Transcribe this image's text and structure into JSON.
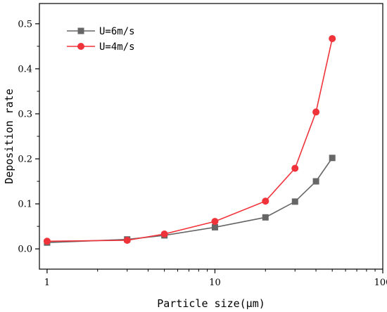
{
  "chart_data": {
    "type": "line",
    "title": "",
    "xlabel": "Particle size(μm)",
    "ylabel": "Deposition rate",
    "x_scale": "log",
    "xlim": [
      0.9,
      100
    ],
    "ylim": [
      -0.045,
      0.545
    ],
    "x_ticks": [
      1,
      10,
      100
    ],
    "x_tick_labels": [
      "1",
      "10",
      "100"
    ],
    "y_ticks": [
      0.0,
      0.1,
      0.2,
      0.3,
      0.4,
      0.5
    ],
    "y_tick_labels": [
      "0.0",
      "0.1",
      "0.2",
      "0.3",
      "0.4",
      "0.5"
    ],
    "grid": false,
    "legend_position": "top-left",
    "series": [
      {
        "name": "U=6m/s",
        "color": "#666666",
        "marker": "square",
        "x": [
          1,
          3,
          5,
          10,
          20,
          30,
          40,
          50
        ],
        "y": [
          0.014,
          0.021,
          0.03,
          0.048,
          0.07,
          0.105,
          0.15,
          0.202
        ]
      },
      {
        "name": "U=4m/s",
        "color": "#f0333a",
        "marker": "circle",
        "x": [
          1,
          3,
          5,
          10,
          20,
          30,
          40,
          50
        ],
        "y": [
          0.017,
          0.019,
          0.033,
          0.061,
          0.106,
          0.179,
          0.304,
          0.467
        ]
      }
    ]
  }
}
